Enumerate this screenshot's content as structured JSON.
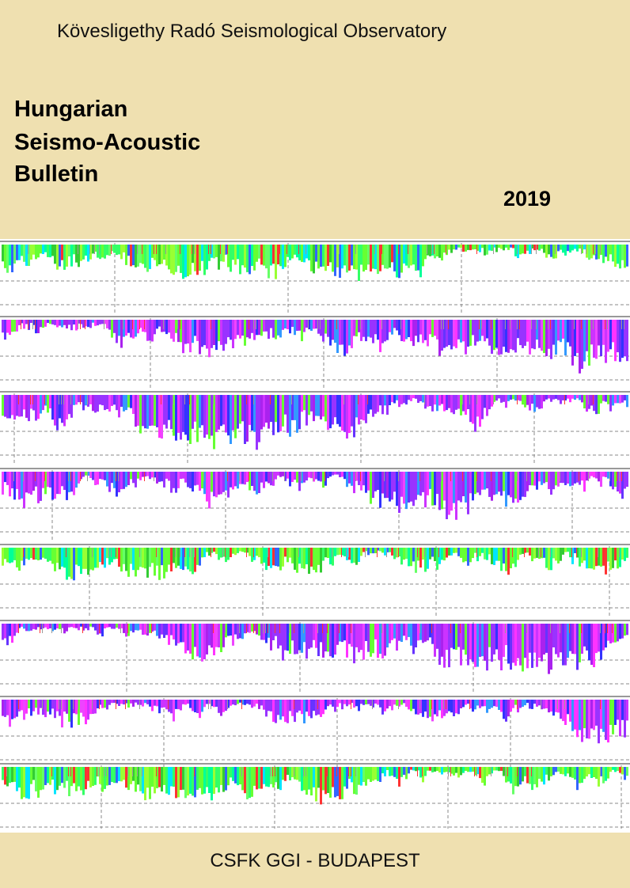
{
  "header": {
    "observatory": "Kövesligethy Radó Seismological Observatory",
    "title": [
      "Hungarian",
      "Seismo-Acoustic",
      "Bulletin"
    ],
    "year": "2019"
  },
  "footer": {
    "publisher": "CSFK GGI - BUDAPEST"
  }
}
